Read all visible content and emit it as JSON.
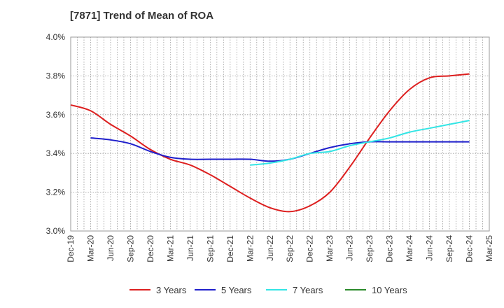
{
  "chart_data": {
    "type": "line",
    "title": "[7871]  Trend of Mean of ROA",
    "xlabel": "",
    "ylabel": "",
    "x_ticks": [
      "Dec-19",
      "Mar-20",
      "Jun-20",
      "Sep-20",
      "Dec-20",
      "Mar-21",
      "Jun-21",
      "Sep-21",
      "Dec-21",
      "Mar-22",
      "Jun-22",
      "Sep-22",
      "Dec-22",
      "Mar-23",
      "Jun-23",
      "Sep-23",
      "Dec-23",
      "Mar-24",
      "Jun-24",
      "Sep-24",
      "Dec-24",
      "Mar-25"
    ],
    "ylim": [
      3.0,
      4.0
    ],
    "y_ticks": [
      3.0,
      3.2,
      3.4,
      3.6,
      3.8,
      4.0
    ],
    "y_tick_labels": [
      "3.0%",
      "3.2%",
      "3.4%",
      "3.6%",
      "3.8%",
      "4.0%"
    ],
    "grid": true,
    "legend_position": "bottom",
    "series": [
      {
        "name": "3 Years",
        "color": "#dd1f1f",
        "x": [
          "Dec-19",
          "Mar-20",
          "Jun-20",
          "Sep-20",
          "Dec-20",
          "Mar-21",
          "Jun-21",
          "Sep-21",
          "Dec-21",
          "Mar-22",
          "Jun-22",
          "Sep-22",
          "Dec-22",
          "Mar-23",
          "Jun-23",
          "Sep-23",
          "Dec-23",
          "Mar-24",
          "Jun-24",
          "Sep-24",
          "Dec-24"
        ],
        "values": [
          3.65,
          3.62,
          3.55,
          3.49,
          3.42,
          3.37,
          3.34,
          3.29,
          3.23,
          3.17,
          3.12,
          3.1,
          3.13,
          3.2,
          3.33,
          3.48,
          3.62,
          3.73,
          3.79,
          3.8,
          3.81
        ]
      },
      {
        "name": "5 Years",
        "color": "#1f1fcc",
        "x": [
          "Mar-20",
          "Jun-20",
          "Sep-20",
          "Dec-20",
          "Mar-21",
          "Jun-21",
          "Sep-21",
          "Dec-21",
          "Mar-22",
          "Jun-22",
          "Sep-22",
          "Dec-22",
          "Mar-23",
          "Jun-23",
          "Sep-23",
          "Dec-23",
          "Mar-24",
          "Jun-24",
          "Sep-24",
          "Dec-24"
        ],
        "values": [
          3.48,
          3.47,
          3.45,
          3.41,
          3.38,
          3.37,
          3.37,
          3.37,
          3.37,
          3.36,
          3.37,
          3.4,
          3.43,
          3.45,
          3.46,
          3.46,
          3.46,
          3.46,
          3.46,
          3.46
        ]
      },
      {
        "name": "7 Years",
        "color": "#33e5e5",
        "x": [
          "Mar-22",
          "Jun-22",
          "Sep-22",
          "Dec-22",
          "Mar-23",
          "Jun-23",
          "Sep-23",
          "Dec-23",
          "Mar-24",
          "Jun-24",
          "Sep-24",
          "Dec-24"
        ],
        "values": [
          3.34,
          3.35,
          3.37,
          3.4,
          3.41,
          3.44,
          3.46,
          3.48,
          3.51,
          3.53,
          3.55,
          3.57
        ]
      },
      {
        "name": "10 Years",
        "color": "#2a8a2a",
        "x": [],
        "values": []
      }
    ]
  }
}
